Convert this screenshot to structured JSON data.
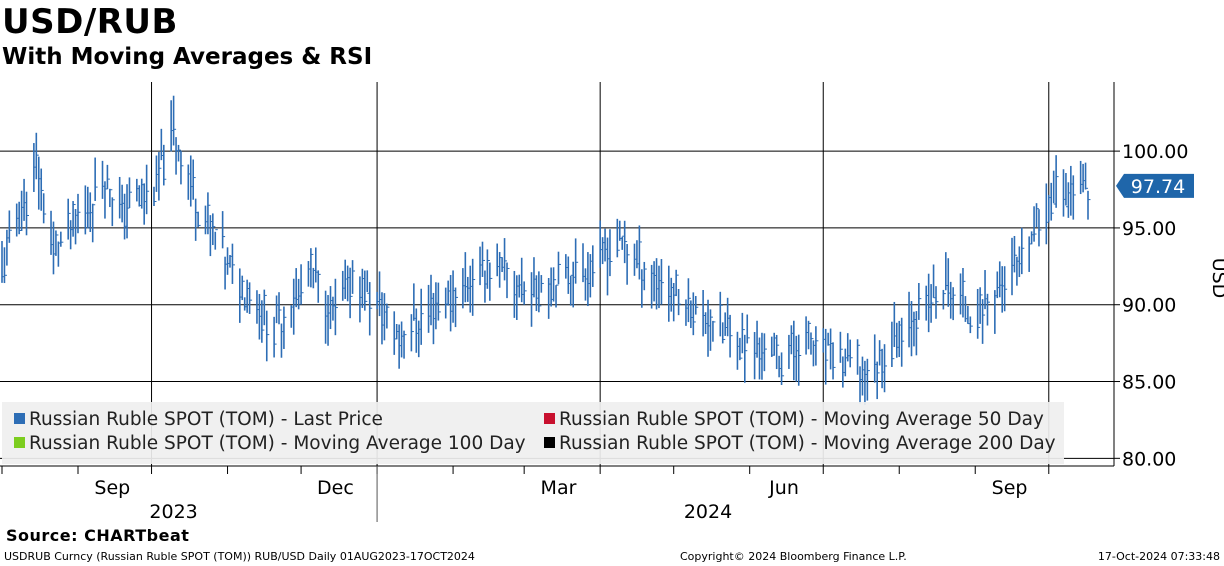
{
  "header": {
    "title": "USD/RUB",
    "subtitle": "With Moving Averages & RSI"
  },
  "chart_data": {
    "type": "bar",
    "style": "ohlc",
    "title": "USD/RUB",
    "subtitle": "With Moving Averages & RSI",
    "xlabel": "",
    "ylabel": "USD",
    "ylim": [
      79.5,
      104.5
    ],
    "yticks": [
      80.0,
      85.0,
      90.0,
      95.0,
      100.0
    ],
    "ytick_labels": [
      "80.00",
      "85.00",
      "90.00",
      "95.00",
      "100.00"
    ],
    "xtick_labels": [
      "Sep",
      "Dec",
      "Mar",
      "Jun",
      "Sep"
    ],
    "year_labels": [
      "2023",
      "2024"
    ],
    "last_price_label": "97.74",
    "last_price": 97.74,
    "accent_color": "#1f66aa",
    "grid": true,
    "legend": {
      "placement": "bottom-left",
      "entries": [
        {
          "label": "Russian Ruble SPOT (TOM) - Last Price",
          "color": "#2d6db5"
        },
        {
          "label": "Russian Ruble SPOT (TOM) - Moving Average 50 Day",
          "color": "#c8102e"
        },
        {
          "label": "Russian Ruble SPOT (TOM) - Moving Average 100 Day",
          "color": "#7ccd1f"
        },
        {
          "label": "Russian Ruble SPOT (TOM) - Moving Average 200 Day",
          "color": "#000000"
        }
      ]
    },
    "series": [
      {
        "name": "Russian Ruble SPOT (TOM) - Last Price",
        "segments": [
          {
            "from": "2023-08-01",
            "to": "2023-08-04",
            "values": [
              92.0,
              94.0
            ]
          },
          {
            "from": "2023-08-04",
            "to": "2023-08-15",
            "values": [
              94.0,
              99.0
            ]
          },
          {
            "from": "2023-08-15",
            "to": "2023-08-22",
            "values": [
              99.0,
              93.5
            ]
          },
          {
            "from": "2023-08-22",
            "to": "2023-09-12",
            "values": [
              93.5,
              98.0
            ]
          },
          {
            "from": "2023-09-12",
            "to": "2023-09-19",
            "values": [
              98.0,
              96.0
            ]
          },
          {
            "from": "2023-09-19",
            "to": "2023-10-03",
            "values": [
              96.0,
              98.0
            ]
          },
          {
            "from": "2023-10-03",
            "to": "2023-10-10",
            "values": [
              98.0,
              101.2
            ]
          },
          {
            "from": "2023-10-10",
            "to": "2023-10-20",
            "values": [
              101.2,
              96.5
            ]
          },
          {
            "from": "2023-10-20",
            "to": "2023-11-01",
            "values": [
              96.5,
              92.5
            ]
          },
          {
            "from": "2023-11-01",
            "to": "2023-11-20",
            "values": [
              92.5,
              88.5
            ]
          },
          {
            "from": "2023-11-20",
            "to": "2023-12-05",
            "values": [
              88.5,
              92.0
            ]
          },
          {
            "from": "2023-12-05",
            "to": "2023-12-15",
            "values": [
              92.0,
              89.0
            ]
          },
          {
            "from": "2023-12-15",
            "to": "2023-12-22",
            "values": [
              89.0,
              92.0
            ]
          },
          {
            "from": "2023-12-22",
            "to": "2024-01-10",
            "values": [
              92.0,
              88.0
            ]
          },
          {
            "from": "2024-01-10",
            "to": "2024-02-15",
            "values": [
              88.0,
              92.5
            ]
          },
          {
            "from": "2024-02-15",
            "to": "2024-03-01",
            "values": [
              92.5,
              91.0
            ]
          },
          {
            "from": "2024-03-01",
            "to": "2024-03-28",
            "values": [
              91.0,
              92.5
            ]
          },
          {
            "from": "2024-03-28",
            "to": "2024-04-08",
            "values": [
              92.5,
              94.0
            ]
          },
          {
            "from": "2024-04-08",
            "to": "2024-04-25",
            "values": [
              94.0,
              91.5
            ]
          },
          {
            "from": "2024-04-25",
            "to": "2024-05-20",
            "values": [
              91.5,
              88.5
            ]
          },
          {
            "from": "2024-05-20",
            "to": "2024-06-12",
            "values": [
              88.5,
              86.5
            ]
          },
          {
            "from": "2024-06-12",
            "to": "2024-06-25",
            "values": [
              86.5,
              87.5
            ]
          },
          {
            "from": "2024-06-25",
            "to": "2024-07-20",
            "values": [
              87.5,
              85.5
            ]
          },
          {
            "from": "2024-07-20",
            "to": "2024-08-05",
            "values": [
              85.5,
              89.0
            ]
          },
          {
            "from": "2024-08-05",
            "to": "2024-08-20",
            "values": [
              89.0,
              91.0
            ]
          },
          {
            "from": "2024-08-20",
            "to": "2024-09-01",
            "values": [
              91.0,
              89.5
            ]
          },
          {
            "from": "2024-09-01",
            "to": "2024-09-20",
            "values": [
              89.5,
              92.5
            ]
          },
          {
            "from": "2024-09-20",
            "to": "2024-10-01",
            "values": [
              92.5,
              97.0
            ]
          },
          {
            "from": "2024-10-01",
            "to": "2024-10-17",
            "values": [
              97.0,
              97.74
            ]
          }
        ]
      }
    ]
  },
  "footer": {
    "source": "Source: CHARTbeat",
    "ticker": "USDRUB Curncy (Russian Ruble SPOT (TOM)) RUB/USD  Daily 01AUG2023-17OCT2024",
    "copyright": "Copyright© 2024 Bloomberg Finance L.P.",
    "timestamp": "17-Oct-2024 07:33:48"
  }
}
